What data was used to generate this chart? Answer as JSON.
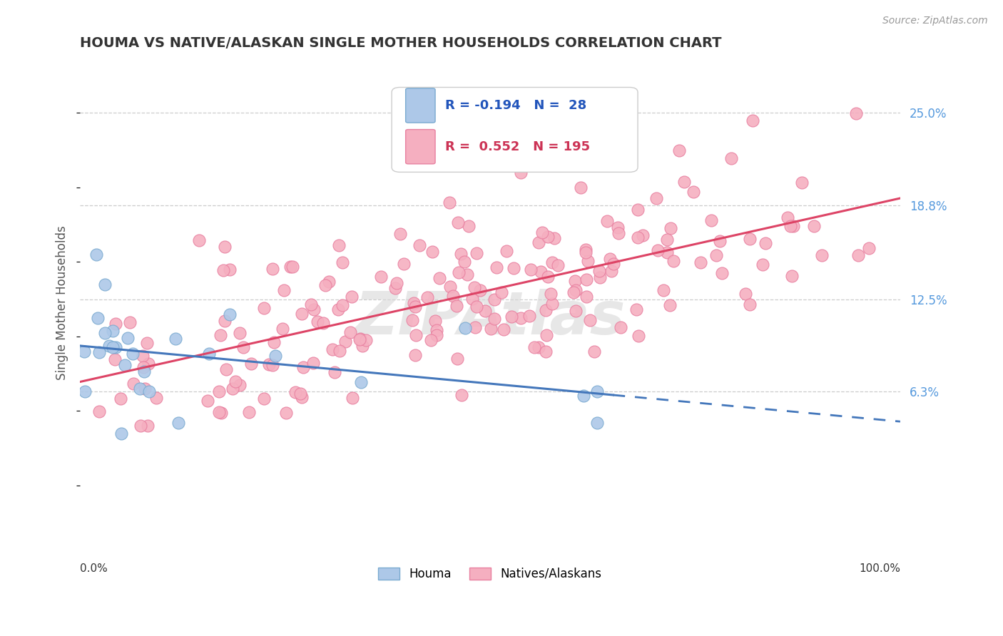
{
  "title": "HOUMA VS NATIVE/ALASKAN SINGLE MOTHER HOUSEHOLDS CORRELATION CHART",
  "source": "Source: ZipAtlas.com",
  "ylabel": "Single Mother Households",
  "ytick_labels": [
    "6.3%",
    "12.5%",
    "18.8%",
    "25.0%"
  ],
  "ytick_values": [
    0.063,
    0.125,
    0.188,
    0.25
  ],
  "xlim": [
    0.0,
    1.0
  ],
  "ylim": [
    -0.04,
    0.285
  ],
  "houma_color": "#adc8e8",
  "native_color": "#f5afc0",
  "houma_edge": "#7aaad0",
  "native_edge": "#e880a0",
  "trend_houma_color": "#4477bb",
  "trend_native_color": "#dd4466",
  "watermark_color": "#d8d8d8",
  "legend_box_color": "#e0e0e0",
  "grid_color": "#cccccc",
  "title_color": "#333333",
  "source_color": "#999999",
  "ytick_color": "#5599dd",
  "xlabel_color": "#333333"
}
